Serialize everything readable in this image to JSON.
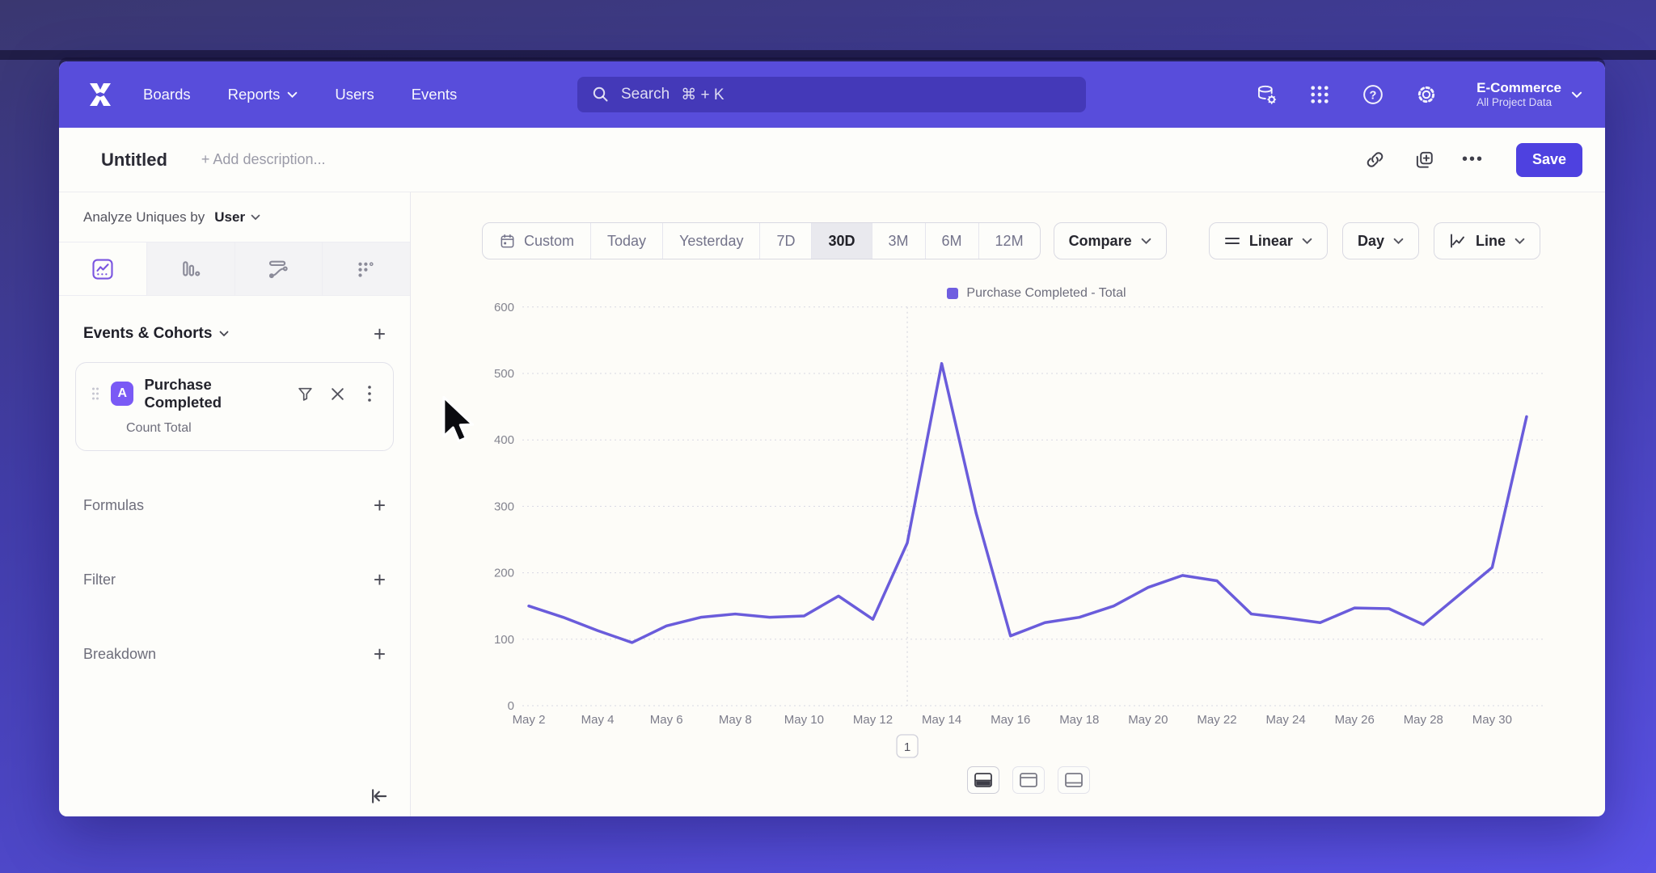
{
  "header": {
    "nav_items": [
      "Boards",
      "Reports",
      "Users",
      "Events"
    ],
    "search_label": "Search",
    "search_shortcut": "⌘ + K",
    "project": {
      "name": "E-Commerce",
      "scope": "All Project Data"
    }
  },
  "title_bar": {
    "title": "Untitled",
    "description_placeholder": "+ Add description...",
    "more_label": "•••",
    "save_label": "Save"
  },
  "sidebar": {
    "analyze_label": "Analyze Uniques by",
    "analyze_value": "User",
    "add_label": "+",
    "events_header": "Events & Cohorts",
    "event_card": {
      "badge": "A",
      "name": "Purchase Completed",
      "metric": "Count Total"
    },
    "formulas_label": "Formulas",
    "filter_label": "Filter",
    "breakdown_label": "Breakdown"
  },
  "toolbar": {
    "ranges": [
      "Custom",
      "Today",
      "Yesterday",
      "7D",
      "30D",
      "3M",
      "6M",
      "12M"
    ],
    "selected_range": "30D",
    "compare_label": "Compare",
    "scale_label": "Linear",
    "interval_label": "Day",
    "chart_type_label": "Line"
  },
  "chart_data": {
    "type": "line",
    "title": "",
    "xlabel": "",
    "ylabel": "",
    "x": [
      "May 2",
      "May 3",
      "May 4",
      "May 5",
      "May 6",
      "May 7",
      "May 8",
      "May 9",
      "May 10",
      "May 11",
      "May 12",
      "May 13",
      "May 14",
      "May 15",
      "May 16",
      "May 17",
      "May 18",
      "May 19",
      "May 20",
      "May 21",
      "May 22",
      "May 23",
      "May 24",
      "May 25",
      "May 26",
      "May 27",
      "May 28",
      "May 29",
      "May 30",
      "May 31"
    ],
    "series": [
      {
        "name": "Purchase Completed - Total",
        "values": [
          150,
          133,
          113,
          95,
          120,
          133,
          138,
          133,
          135,
          165,
          130,
          245,
          515,
          290,
          105,
          125,
          133,
          150,
          178,
          196,
          188,
          138,
          132,
          125,
          147,
          146,
          122,
          165,
          208,
          435
        ]
      }
    ],
    "ylim": [
      0,
      600
    ],
    "yticks": [
      0,
      100,
      200,
      300,
      400,
      500,
      600
    ],
    "xtick_every": 2,
    "grid": true,
    "legend_position": "top",
    "line_color": "#6a5cdb",
    "annotation": {
      "x": "May 13",
      "label": "1"
    }
  }
}
